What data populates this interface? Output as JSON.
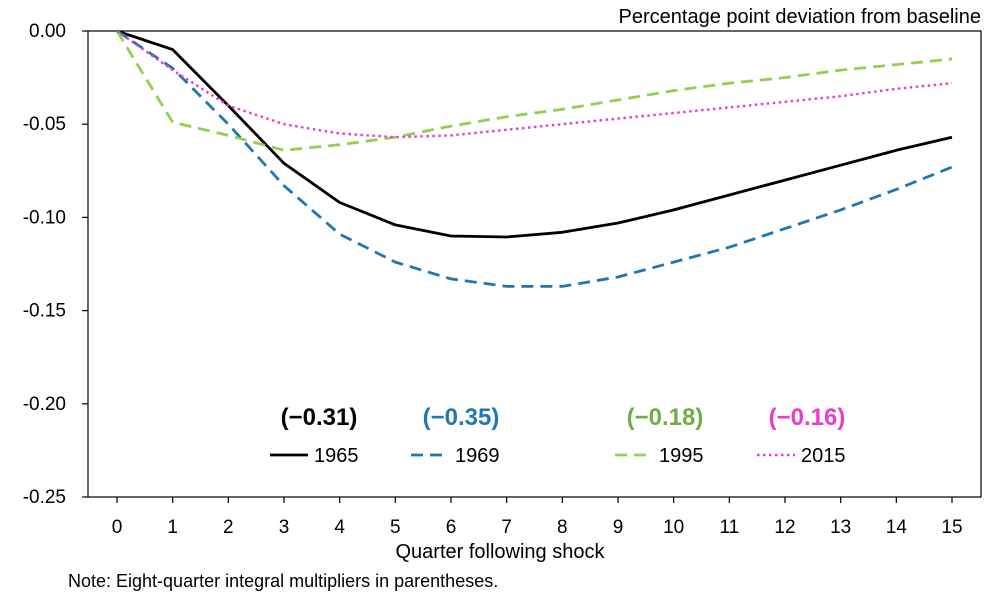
{
  "chart_data": {
    "type": "line",
    "ylabel": "Percentage point deviation from baseline",
    "xlabel": "Quarter following shock",
    "note": "Note:  Eight-quarter integral multipliers in parentheses.",
    "x": [
      0,
      1,
      2,
      3,
      4,
      5,
      6,
      7,
      8,
      9,
      10,
      11,
      12,
      13,
      14,
      15
    ],
    "xlim": [
      0,
      15
    ],
    "ylim": [
      -0.25,
      0.0
    ],
    "yticks": [
      0.0,
      -0.05,
      -0.1,
      -0.15,
      -0.2,
      -0.25
    ],
    "ytick_labels": [
      "0.00",
      "-0.05",
      "-0.10",
      "-0.15",
      "-0.20",
      "-0.25"
    ],
    "xtick_labels": [
      "0",
      "1",
      "2",
      "3",
      "4",
      "5",
      "6",
      "7",
      "8",
      "9",
      "10",
      "11",
      "12",
      "13",
      "14",
      "15"
    ],
    "grid": false,
    "legend_position": "bottom-center",
    "series": [
      {
        "name": "1965",
        "multiplier": "(−0.31)",
        "color": "#000000",
        "dash": "solid",
        "values": [
          0.0,
          -0.01,
          -0.04,
          -0.071,
          -0.092,
          -0.104,
          -0.11,
          -0.1105,
          -0.108,
          -0.103,
          -0.096,
          -0.088,
          -0.08,
          -0.072,
          -0.064,
          -0.057
        ]
      },
      {
        "name": "1969",
        "multiplier": "(−0.35)",
        "color": "#1f77b4",
        "dash": "dashed",
        "values": [
          0.0,
          -0.02,
          -0.05,
          -0.083,
          -0.109,
          -0.124,
          -0.133,
          -0.137,
          -0.137,
          -0.132,
          -0.124,
          -0.116,
          -0.106,
          -0.096,
          -0.085,
          -0.073
        ]
      },
      {
        "name": "1995",
        "multiplier": "(−0.18)",
        "color": "#92d050",
        "label_color": "#70ad47",
        "dash": "dashed",
        "values": [
          0.0,
          -0.049,
          -0.056,
          -0.064,
          -0.061,
          -0.057,
          -0.051,
          -0.046,
          -0.042,
          -0.037,
          -0.032,
          -0.028,
          -0.025,
          -0.021,
          -0.018,
          -0.015
        ]
      },
      {
        "name": "2015",
        "multiplier": "(−0.16)",
        "color": "#e83ccb",
        "dash": "dotted",
        "values": [
          0.0,
          -0.021,
          -0.04,
          -0.05,
          -0.055,
          -0.057,
          -0.056,
          -0.053,
          -0.05,
          -0.047,
          -0.044,
          -0.041,
          -0.038,
          -0.035,
          -0.031,
          -0.028
        ]
      }
    ]
  }
}
